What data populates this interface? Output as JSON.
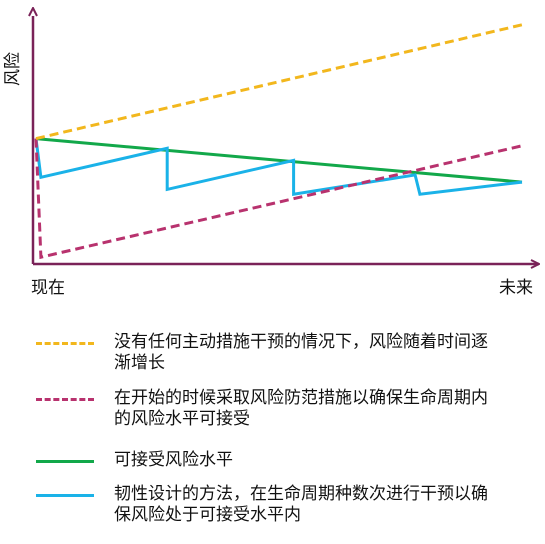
{
  "chart_data": {
    "type": "line",
    "title": "",
    "xlabel": "",
    "ylabel": "风险",
    "x_ticks": [
      "现在",
      "未来"
    ],
    "xlim": [
      0,
      100
    ],
    "ylim": [
      0,
      100
    ],
    "grid": false,
    "legend_position": "bottom",
    "series": [
      {
        "name": "没有任何主动措施干预的情况下，风险随着时间逐渐增长",
        "color": "#f2b71d",
        "style": "dashed",
        "points": [
          [
            0,
            51
          ],
          [
            100,
            98
          ]
        ]
      },
      {
        "name": "在开始的时候采取风险防范措施以确保生命周期内的风险水平可接受",
        "color": "#b8326e",
        "style": "dashed",
        "points": [
          [
            0,
            51
          ],
          [
            1,
            2
          ],
          [
            100,
            48
          ]
        ]
      },
      {
        "name": "可接受风险水平",
        "color": "#12a84a",
        "style": "solid",
        "points": [
          [
            0,
            51
          ],
          [
            100,
            33
          ]
        ]
      },
      {
        "name": "韧性设计的方法，在生命周期种数次进行干预以确保风险处于可接受水平内",
        "color": "#1ab2e8",
        "style": "solid",
        "points": [
          [
            0,
            51
          ],
          [
            1,
            35
          ],
          [
            27,
            47
          ],
          [
            27,
            30
          ],
          [
            53,
            42
          ],
          [
            53,
            28
          ],
          [
            78,
            36
          ],
          [
            79,
            28
          ],
          [
            100,
            33
          ]
        ]
      }
    ]
  }
}
